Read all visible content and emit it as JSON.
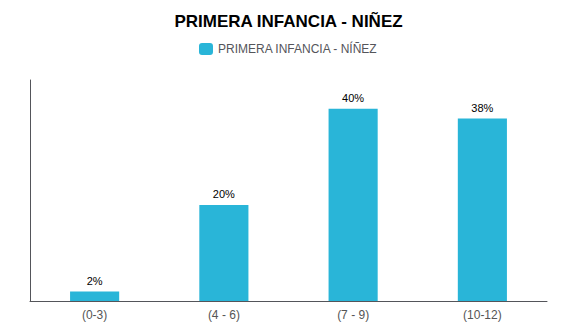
{
  "chart_data": {
    "type": "bar",
    "title": "PRIMERA INFANCIA - NIÑEZ",
    "categories": [
      "(0-3)",
      "(4 - 6)",
      "(7 - 9)",
      "(10-12)"
    ],
    "series": [
      {
        "name": "PRIMERA INFANCIA - NÍÑEZ",
        "color": "#29B5D8",
        "values": [
          2,
          20,
          40,
          38
        ],
        "value_labels": [
          "2%",
          "20%",
          "40%",
          "38%"
        ]
      }
    ],
    "ylim": [
      0,
      46
    ],
    "grid": false,
    "legend": "top",
    "data_labels": true,
    "tick_labels": "x"
  }
}
